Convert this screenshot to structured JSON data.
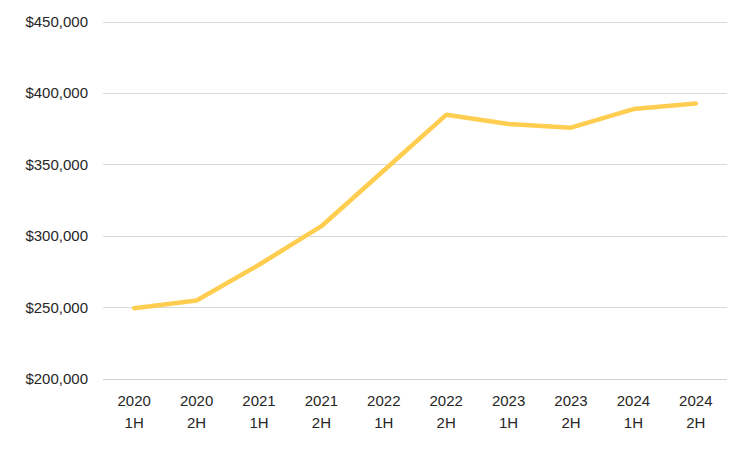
{
  "chart_data": {
    "type": "line",
    "categories": [
      "2020 1H",
      "2020 2H",
      "2021 1H",
      "2021 2H",
      "2022 1H",
      "2022 2H",
      "2023 1H",
      "2023 2H",
      "2024 1H",
      "2024 2H"
    ],
    "values": [
      249500,
      255000,
      280000,
      307000,
      346000,
      385000,
      378500,
      376000,
      389000,
      393000
    ],
    "color": "#ffcd4f",
    "ylim": [
      200000,
      450000
    ],
    "yticks": [
      {
        "value": 200000,
        "label": "$200,000"
      },
      {
        "value": 250000,
        "label": "$250,000"
      },
      {
        "value": 300000,
        "label": "$300,000"
      },
      {
        "value": 350000,
        "label": "$350,000"
      },
      {
        "value": 400000,
        "label": "$400,000"
      },
      {
        "value": 450000,
        "label": "$450,000"
      }
    ],
    "grid": true
  }
}
